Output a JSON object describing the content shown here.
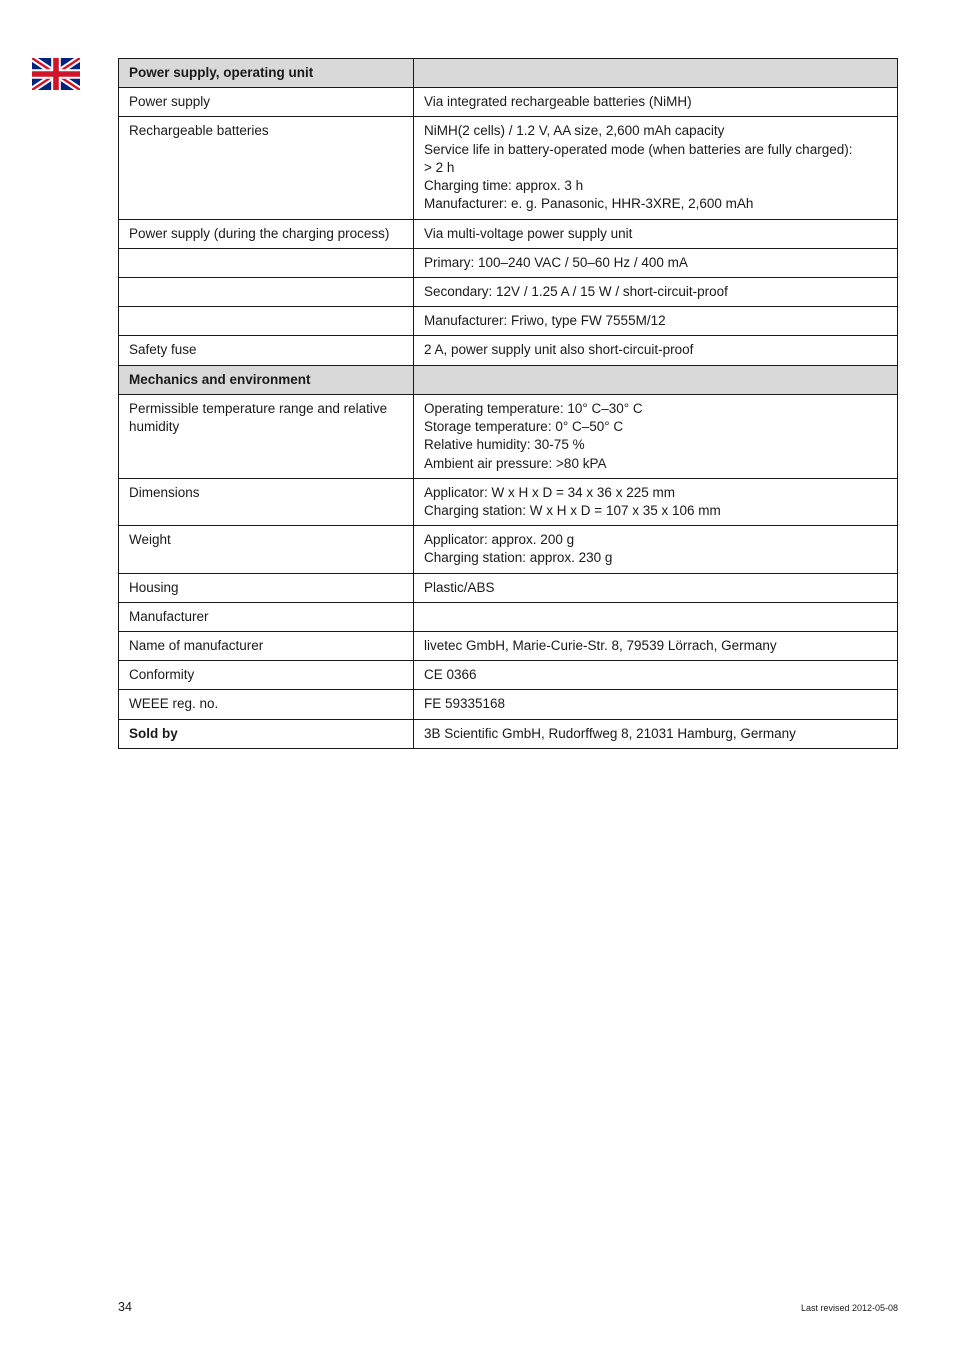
{
  "flag": {
    "width": 48,
    "height": 32,
    "bg": "#ffffff",
    "blue": "#00247d",
    "red": "#cf142b",
    "white": "#ffffff"
  },
  "table": {
    "section1_header": "Power supply, operating unit",
    "rows1": [
      {
        "label": "Power supply",
        "value": "Via integrated rechargeable batteries (NiMH)"
      },
      {
        "label": "Rechargeable batteries",
        "value": "NiMH(2 cells) / 1.2 V, AA size, 2,600 mAh capacity\nService life in battery-operated mode (when batteries are fully charged):\n> 2 h\nCharging time: approx. 3 h\nManufacturer: e. g. Panasonic, HHR-3XRE, 2,600 mAh"
      },
      {
        "label": "Power supply (during the charging process)",
        "value": "Via multi-voltage power supply unit"
      },
      {
        "label": "",
        "value": "Primary: 100–240 VAC / 50–60 Hz / 400 mA"
      },
      {
        "label": "",
        "value": "Secondary: 12V / 1.25 A / 15 W / short-circuit-proof"
      },
      {
        "label": "",
        "value": "Manufacturer: Friwo, type FW 7555M/12"
      },
      {
        "label": "Safety fuse",
        "value": "2 A, power supply unit also short-circuit-proof"
      }
    ],
    "section2_header": "Mechanics and environment",
    "rows2": [
      {
        "label": "Permissible temperature range and relative humidity",
        "value": "Operating temperature: 10° C–30° C\nStorage temperature: 0° C–50° C\nRelative humidity: 30-75 %\nAmbient air pressure: >80 kPA"
      },
      {
        "label": "Dimensions",
        "value": "Applicator: W x H x D = 34 x 36 x 225 mm\nCharging station: W x H x D = 107 x 35 x 106 mm"
      },
      {
        "label": "Weight",
        "value": "Applicator: approx. 200 g\nCharging station: approx. 230 g"
      },
      {
        "label": "Housing",
        "value": "Plastic/ABS"
      },
      {
        "label": "Manufacturer",
        "value": ""
      },
      {
        "label": "Name of manufacturer",
        "value": "livetec GmbH, Marie-Curie-Str. 8, 79539 Lörrach, Germany"
      },
      {
        "label": "Conformity",
        "value": "CE 0366"
      },
      {
        "label": "WEEE reg. no.",
        "value": "FE 59335168"
      },
      {
        "label": "Sold by",
        "bold": true,
        "value": "3B Scientific GmbH, Rudorffweg 8, 21031 Hamburg, Germany"
      }
    ]
  },
  "footer": {
    "page": "34",
    "revised": "Last revised 2012-05-08"
  }
}
